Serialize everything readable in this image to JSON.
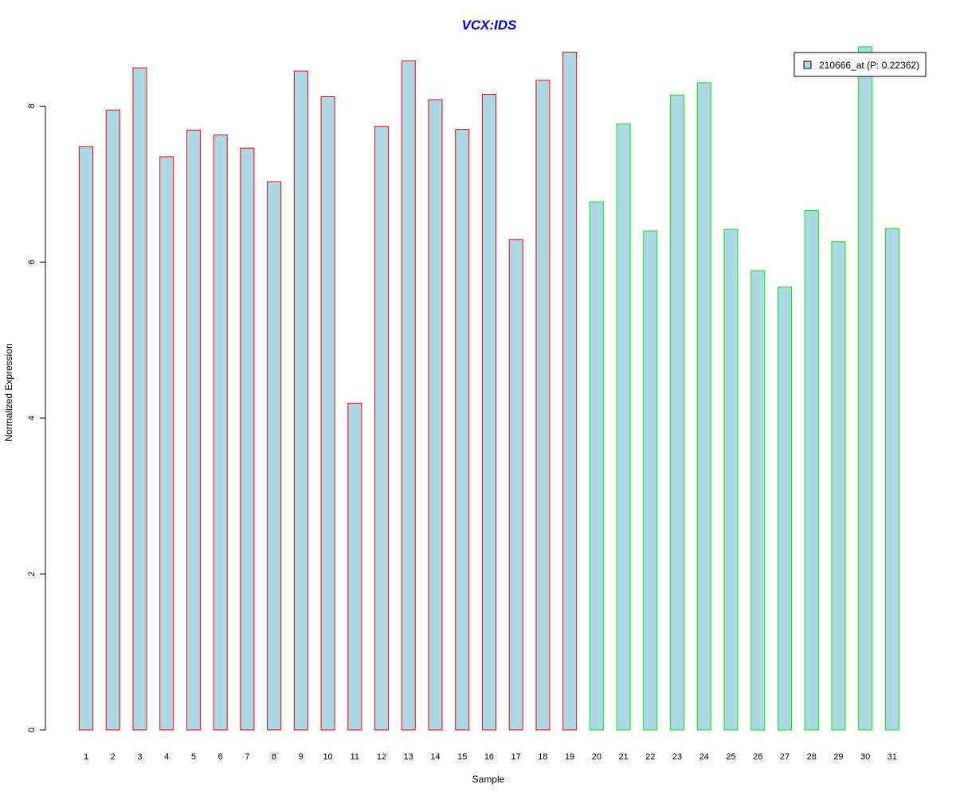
{
  "chart_data": {
    "type": "bar",
    "title": "VCX:IDS",
    "xlabel": "Sample",
    "ylabel": "Normalized Expression",
    "ylim": [
      0,
      8.85
    ],
    "yticks": [
      0,
      2,
      4,
      6,
      8
    ],
    "grid": false,
    "categories": [
      "1",
      "2",
      "3",
      "4",
      "5",
      "6",
      "7",
      "8",
      "9",
      "10",
      "11",
      "12",
      "13",
      "14",
      "15",
      "16",
      "17",
      "18",
      "19",
      "20",
      "21",
      "22",
      "23",
      "24",
      "25",
      "26",
      "27",
      "28",
      "29",
      "30",
      "31"
    ],
    "series": [
      {
        "name": "210666_at (P: 0.22362)",
        "values": [
          7.48,
          7.95,
          8.49,
          7.35,
          7.69,
          7.63,
          7.46,
          7.03,
          8.45,
          8.12,
          4.19,
          7.74,
          8.58,
          8.08,
          7.7,
          8.15,
          6.29,
          8.33,
          8.69,
          6.77,
          7.77,
          6.4,
          8.14,
          8.3,
          6.42,
          5.89,
          5.68,
          6.66,
          6.26,
          8.76,
          6.43
        ],
        "group": [
          "a",
          "a",
          "a",
          "a",
          "a",
          "a",
          "a",
          "a",
          "a",
          "a",
          "a",
          "a",
          "a",
          "a",
          "a",
          "a",
          "a",
          "a",
          "a",
          "b",
          "b",
          "b",
          "b",
          "b",
          "b",
          "b",
          "b",
          "b",
          "b",
          "b",
          "b"
        ]
      }
    ],
    "legend_position": "top-right",
    "colors": {
      "bar_fill": "#add8e6",
      "border_group_a": "#ff0000",
      "border_group_b": "#00ee00",
      "title": "#0000cc",
      "axis": "#000000"
    }
  }
}
